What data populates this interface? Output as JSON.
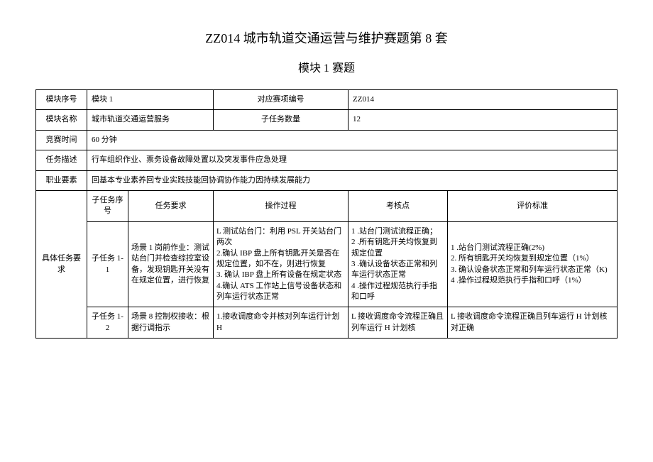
{
  "title": "ZZ014 城市轨道交通运营与维护赛题第 8 套",
  "subtitle": "模块 1 赛题",
  "rows": {
    "module_seq_label": "模块序号",
    "module_seq_value": "模块 1",
    "comp_code_label": "对应赛项编号",
    "comp_code_value": "ZZ014",
    "module_name_label": "模块名称",
    "module_name_value": "城市轨道交通运营服务",
    "subtask_count_label": "子任务数量",
    "subtask_count_value": "12",
    "comp_time_label": "竞赛时间",
    "comp_time_value": "60 分钟",
    "task_desc_label": "任务描述",
    "task_desc_value": "行车组织作业、票务设备故障处置以及突发事件应急处理",
    "occ_req_label": "职业要素",
    "occ_req_value": "回基本专业素养回专业实践技能回协调协作能力因持续发展能力",
    "detail_label": "具体任务要求",
    "subtask_seq_header": "子任务序号",
    "task_req_header": "任务要求",
    "proc_header": "操作过程",
    "check_header": "考核点",
    "eval_header": "评价标准"
  },
  "tasks": [
    {
      "seq": "子任务 1-1",
      "req": "场景 1 岗前作业：测试站台门并检查综控室设备，发现钥匙开关没有在规定位置，进行恢复",
      "proc": "L 测试站台门：利用 PSL 开关站台门两次\n2.确认 IBP 盘上所有钥匙开关是否在规定位置，如不在，则进行恢复\n3. 确认 IBP 盘上所有设备在规定状态\n4.确认 ATS 工作站上信号设备状态和列车运行状态正常",
      "check": "1        .站台门测试流程正确；\n2        .所有钥匙开关均恢复到规定位置\n3        .确认设备状态正常和列车运行状态正常\n4        .操作过程规范执行手指和口呼",
      "eval": "1        .站台门测试流程正确(2%)\n2. 所有钥匙开关均恢复到规定位置（1%）\n3. 确认设备状态正常和列车运行状态正常（K)\n4        .操作过程规范执行手指和口呼（1%）"
    },
    {
      "seq": "子任务 1-2",
      "req": "场景 8 控制权接收：根据行调指示",
      "proc": "1.接收调度命令并核对列车运行计划 H",
      "check": "L 接收调度命令流程正确且列车运行 H 计划核",
      "eval": "L 接收调度命令流程正确且列车运行 H 计划核对正确"
    }
  ]
}
